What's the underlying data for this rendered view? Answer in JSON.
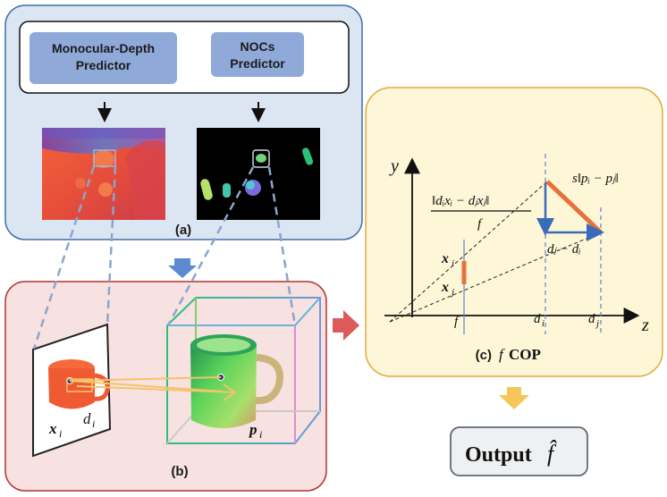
{
  "panel_a": {
    "label": "(a)",
    "predictor_left_line1": "Monocular-Depth",
    "predictor_left_line2": "Predictor",
    "predictor_right_line1": "NOCs",
    "predictor_right_line2": "Predictor"
  },
  "panel_b": {
    "label": "(b)",
    "xi": "x",
    "xi_sub": "i",
    "di": "d",
    "di_sub": "i",
    "pi": "p",
    "pi_sub": "i"
  },
  "panel_c": {
    "label": "(c)",
    "title_f": "f",
    "title_rest": "COP",
    "axis_y": "y",
    "axis_z": "z",
    "tick_f": "f",
    "tick_di": "d",
    "tick_di_sub": "i",
    "tick_dj": "d",
    "tick_dj_sub": "j",
    "pt_xi": "x",
    "pt_xi_sub": "i",
    "pt_xj": "x",
    "pt_xj_sub": "j",
    "frac_num": "‖dᵢxᵢ − dⱼxⱼ‖",
    "frac_den": "f",
    "scale_label": "s‖pᵢ − pⱼ‖",
    "diff_label": "dⱼ − dᵢ"
  },
  "output": {
    "label": "Output",
    "symbol": "f̂"
  },
  "colors": {
    "panel_a_fill": "#dce6f3",
    "panel_a_stroke": "#3f6ea8",
    "panel_b_fill": "#f8e1e1",
    "panel_b_stroke": "#b33434",
    "panel_c_fill": "#fdf7d8",
    "panel_c_stroke": "#e3a93a",
    "predictor_fill": "#8fa9d9",
    "orange": "#e8703a",
    "blue_arrow": "#3a6bb8"
  }
}
